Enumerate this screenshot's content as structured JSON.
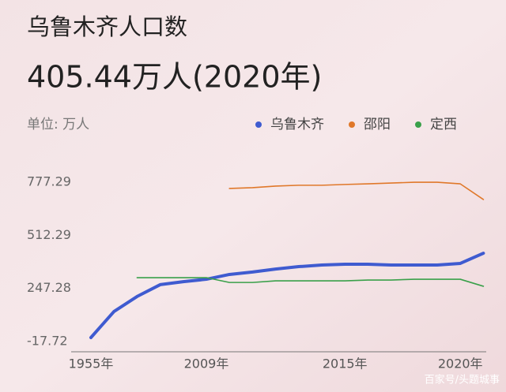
{
  "chart_data": {
    "type": "line",
    "title": "乌鲁木齐人口数",
    "subtitle": "405.44万人(2020年)",
    "unit_label": "单位: 万人",
    "watermark": "百家号/头题城事",
    "categories": [
      "1955年",
      null,
      null,
      null,
      null,
      "2009年",
      null,
      null,
      null,
      null,
      null,
      "2015年",
      null,
      null,
      null,
      null,
      "2020年",
      null
    ],
    "series": [
      {
        "name": "乌鲁木齐",
        "color": "#3f5bd0",
        "values": [
          2,
          132,
          207,
          266,
          281,
          293,
          317,
          329,
          344,
          356,
          364,
          368,
          368,
          364,
          364,
          364,
          372,
          423
        ]
      },
      {
        "name": "邵阳",
        "color": "#e0782a",
        "values": [
          null,
          null,
          null,
          null,
          null,
          null,
          746,
          750,
          758,
          762,
          762,
          766,
          769,
          773,
          777,
          777,
          769,
          691
        ]
      },
      {
        "name": "定西",
        "color": "#3aa04a",
        "values": [
          null,
          null,
          301,
          301,
          301,
          301,
          277,
          277,
          285,
          285,
          285,
          285,
          289,
          289,
          293,
          293,
          293,
          258
        ]
      }
    ],
    "ylim": [
      -17.72,
      777.29
    ],
    "yticks": [
      -17.72,
      247.28,
      512.29,
      777.29
    ]
  }
}
